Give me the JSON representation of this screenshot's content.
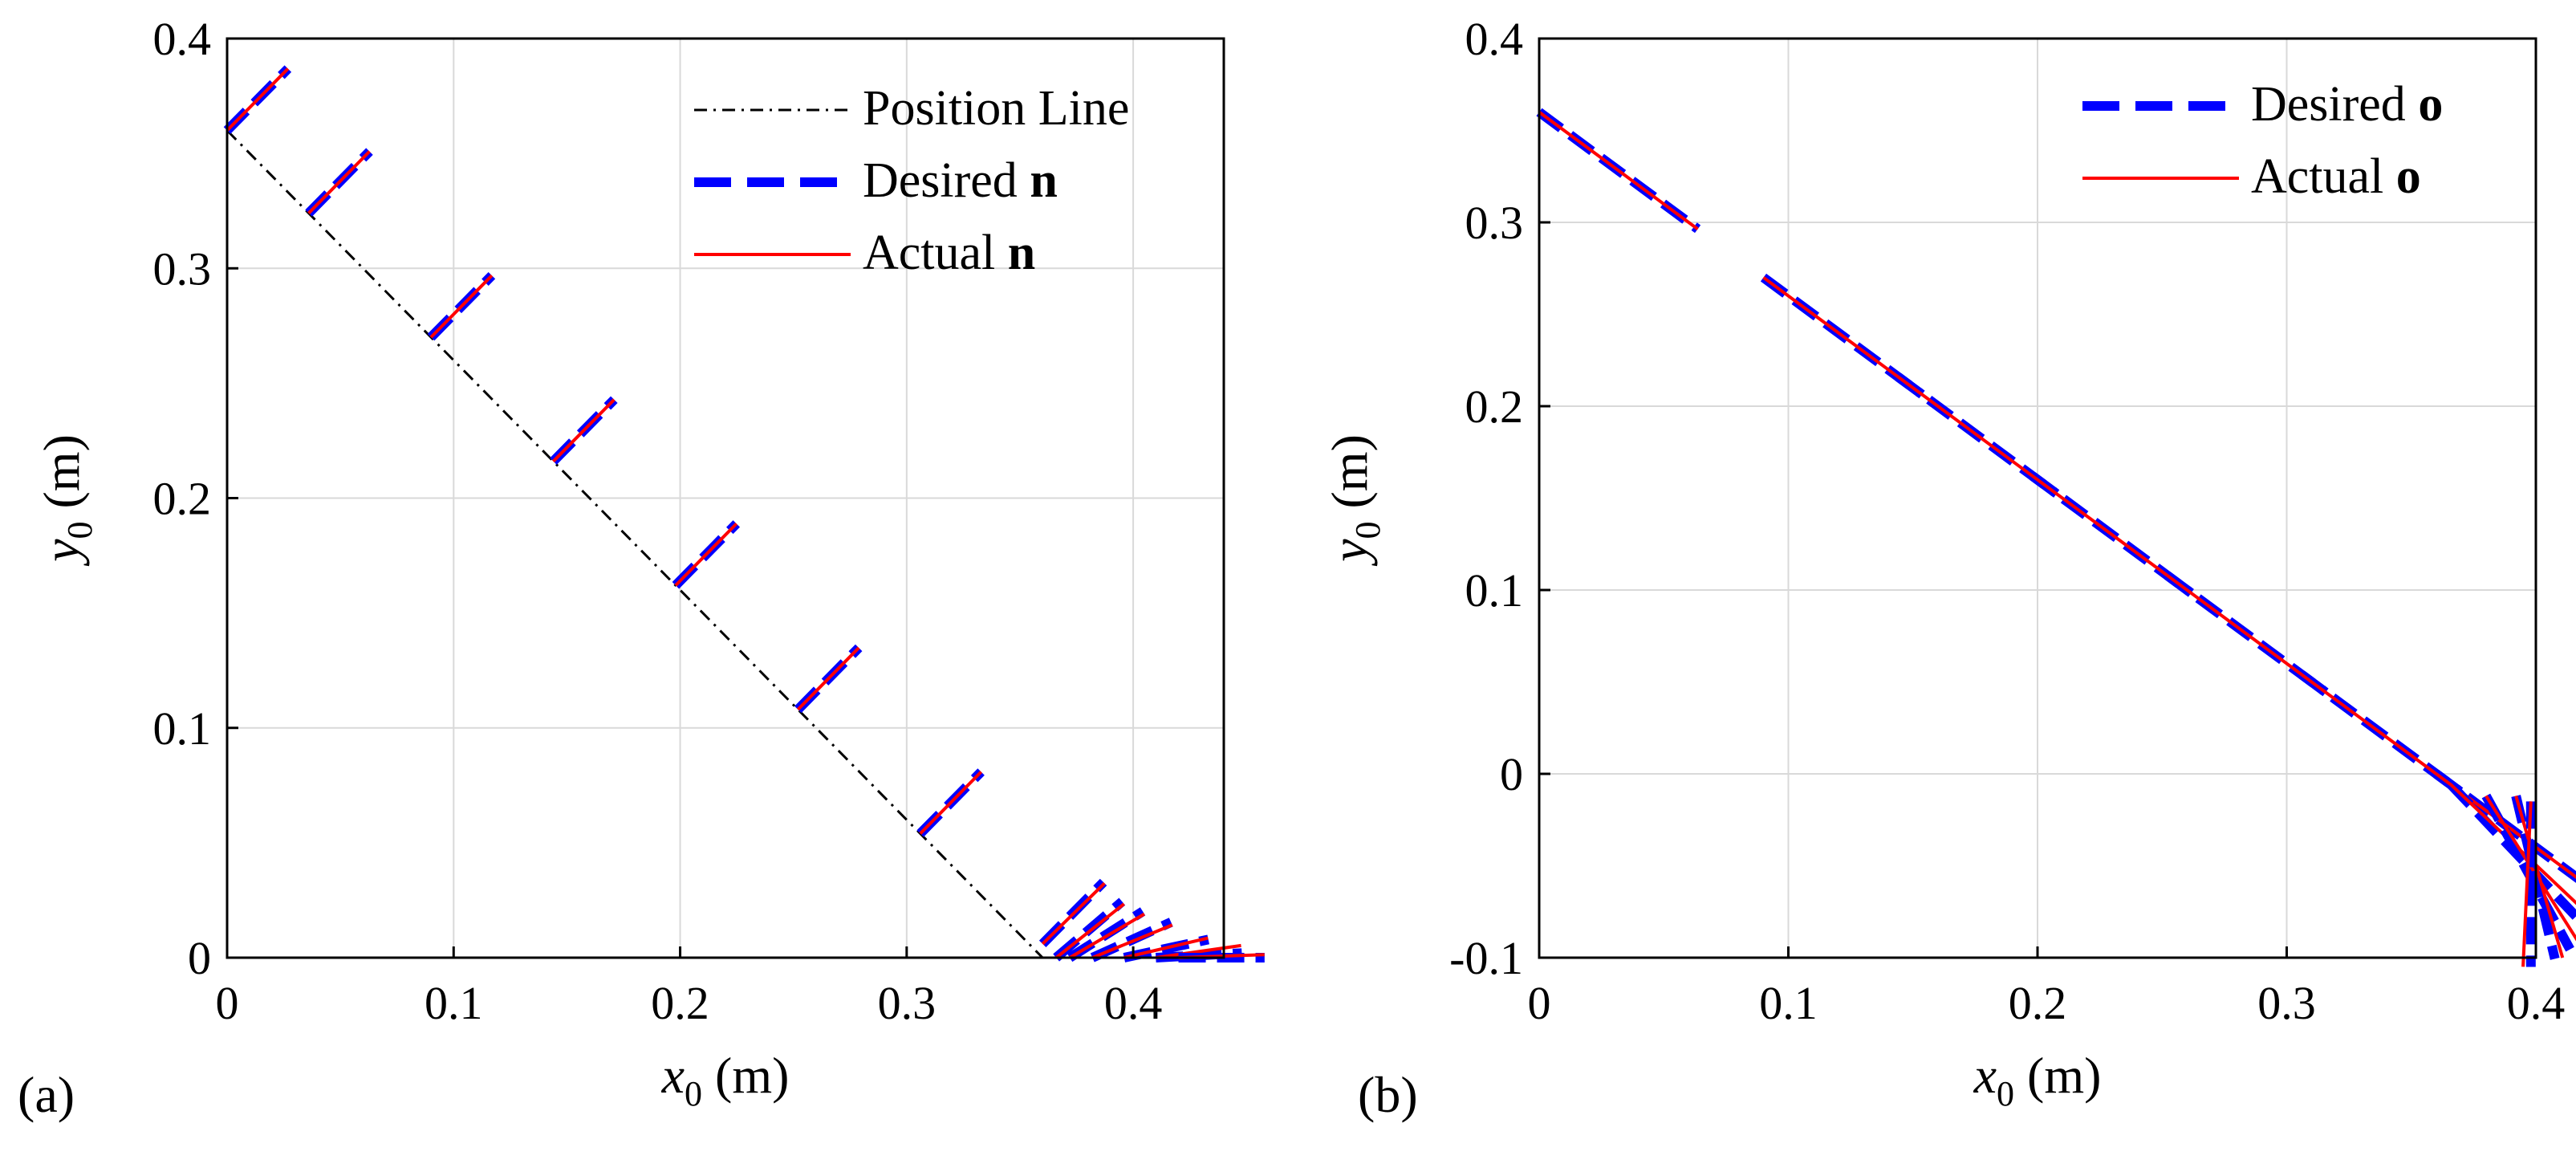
{
  "figure": {
    "panel_labels": [
      "(a)",
      "(b)"
    ]
  },
  "chart_data": [
    {
      "type": "line",
      "panel": "(a)",
      "xlabel": {
        "var": "x",
        "sub": "0",
        "unit": " (m)"
      },
      "ylabel": {
        "var": "y",
        "sub": "0",
        "unit": " (m)"
      },
      "xlim": [
        0,
        0.44
      ],
      "ylim": [
        0,
        0.4
      ],
      "xticks": [
        0,
        0.1,
        0.2,
        0.3,
        0.4
      ],
      "xtick_labels": [
        "0",
        "0.1",
        "0.2",
        "0.3",
        "0.4"
      ],
      "yticks": [
        0,
        0.1,
        0.2,
        0.3,
        0.4
      ],
      "ytick_labels": [
        "0",
        "0.1",
        "0.2",
        "0.3",
        "0.4"
      ],
      "grid": true,
      "legend_position": "top-right",
      "legend": [
        {
          "label": "Position Line",
          "bold_suffix": "",
          "style": "dashdot",
          "color": "#000000"
        },
        {
          "label": "Desired  ",
          "bold_suffix": "n",
          "style": "dashed",
          "color": "#0000ff"
        },
        {
          "label": "Actual  ",
          "bold_suffix": "n",
          "style": "solid",
          "color": "#ff0000"
        }
      ],
      "position_line": {
        "x": [
          0,
          0.36
        ],
        "y": [
          0.36,
          0.0
        ]
      },
      "vector_scale": 0.038,
      "vectors": [
        {
          "x": 0.0,
          "y": 0.36,
          "angle_deg": 45,
          "actual_angle_deg": 45
        },
        {
          "x": 0.036,
          "y": 0.324,
          "angle_deg": 45,
          "actual_angle_deg": 45
        },
        {
          "x": 0.09,
          "y": 0.27,
          "angle_deg": 45,
          "actual_angle_deg": 45
        },
        {
          "x": 0.144,
          "y": 0.216,
          "angle_deg": 45,
          "actual_angle_deg": 45
        },
        {
          "x": 0.198,
          "y": 0.162,
          "angle_deg": 45,
          "actual_angle_deg": 45
        },
        {
          "x": 0.252,
          "y": 0.108,
          "angle_deg": 45,
          "actual_angle_deg": 45
        },
        {
          "x": 0.306,
          "y": 0.054,
          "angle_deg": 45,
          "actual_angle_deg": 45
        },
        {
          "x": 0.36,
          "y": 0.006,
          "angle_deg": 45,
          "actual_angle_deg": 44
        },
        {
          "x": 0.366,
          "y": 0.0,
          "angle_deg": 40,
          "actual_angle_deg": 38
        },
        {
          "x": 0.372,
          "y": 0.0,
          "angle_deg": 32,
          "actual_angle_deg": 30
        },
        {
          "x": 0.382,
          "y": 0.0,
          "angle_deg": 24,
          "actual_angle_deg": 22
        },
        {
          "x": 0.396,
          "y": 0.0,
          "angle_deg": 12,
          "actual_angle_deg": 13
        },
        {
          "x": 0.41,
          "y": 0.0,
          "angle_deg": 3,
          "actual_angle_deg": 8
        },
        {
          "x": 0.42,
          "y": 0.0,
          "angle_deg": 0,
          "actual_angle_deg": 2
        }
      ]
    },
    {
      "type": "line",
      "panel": "(b)",
      "xlabel": {
        "var": "x",
        "sub": "0",
        "unit": " (m)"
      },
      "ylabel": {
        "var": "y",
        "sub": "0",
        "unit": " (m)"
      },
      "xlim": [
        0,
        0.4
      ],
      "ylim": [
        -0.1,
        0.4
      ],
      "xticks": [
        0,
        0.1,
        0.2,
        0.3,
        0.4
      ],
      "xtick_labels": [
        "0",
        "0.1",
        "0.2",
        "0.3",
        "0.4"
      ],
      "yticks": [
        -0.1,
        0,
        0.1,
        0.2,
        0.3,
        0.4
      ],
      "ytick_labels": [
        "-0.1",
        "0",
        "0.1",
        "0.2",
        "0.3",
        "0.4"
      ],
      "grid": true,
      "legend_position": "top-right",
      "legend": [
        {
          "label": "Desired  ",
          "bold_suffix": "o",
          "style": "dashed",
          "color": "#0000ff"
        },
        {
          "label": "Actual  ",
          "bold_suffix": "o",
          "style": "solid",
          "color": "#ff0000"
        }
      ],
      "vector_scale": 0.09,
      "vectors": [
        {
          "x": 0.0,
          "y": 0.36,
          "angle_deg": -45,
          "actual_angle_deg": -45
        },
        {
          "x": 0.09,
          "y": 0.27,
          "angle_deg": -45,
          "actual_angle_deg": -45
        },
        {
          "x": 0.144,
          "y": 0.216,
          "angle_deg": -45,
          "actual_angle_deg": -45
        },
        {
          "x": 0.198,
          "y": 0.162,
          "angle_deg": -45,
          "actual_angle_deg": -45
        },
        {
          "x": 0.252,
          "y": 0.108,
          "angle_deg": -45,
          "actual_angle_deg": -45
        },
        {
          "x": 0.306,
          "y": 0.054,
          "angle_deg": -45,
          "actual_angle_deg": -45
        },
        {
          "x": 0.36,
          "y": 0.0,
          "angle_deg": -45,
          "actual_angle_deg": -45
        },
        {
          "x": 0.366,
          "y": -0.006,
          "angle_deg": -55,
          "actual_angle_deg": -52
        },
        {
          "x": 0.38,
          "y": -0.012,
          "angle_deg": -68,
          "actual_angle_deg": -65
        },
        {
          "x": 0.392,
          "y": -0.012,
          "angle_deg": -80,
          "actual_angle_deg": -78
        },
        {
          "x": 0.398,
          "y": -0.015,
          "angle_deg": -90,
          "actual_angle_deg": -92
        }
      ]
    }
  ]
}
